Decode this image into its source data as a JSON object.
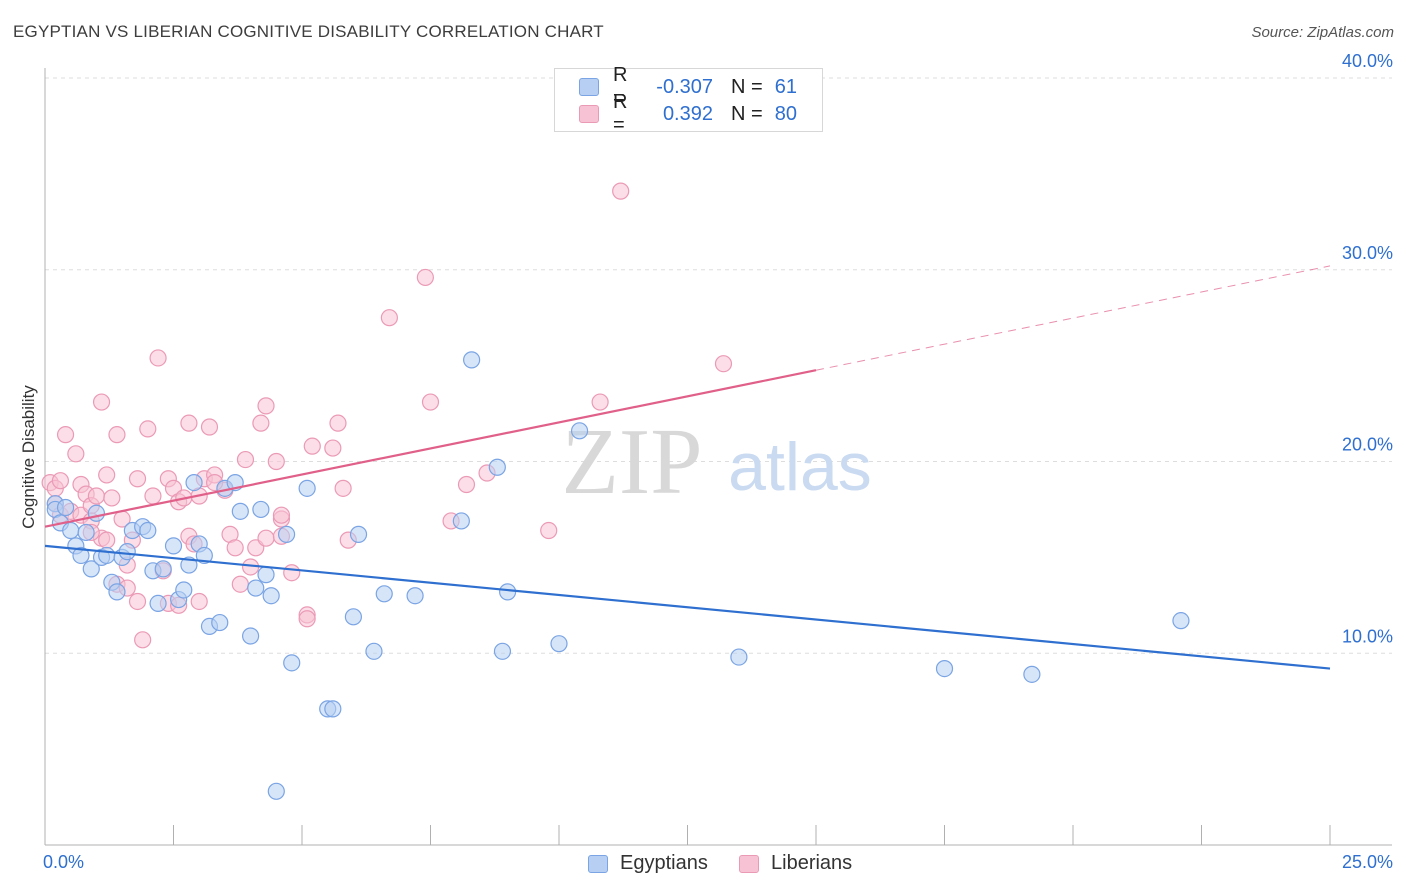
{
  "title": "EGYPTIAN VS LIBERIAN COGNITIVE DISABILITY CORRELATION CHART",
  "source": "Source: ZipAtlas.com",
  "watermark": {
    "zip": "ZIP",
    "atlas": "atlas"
  },
  "colors": {
    "blue": "#2e6fcf",
    "blue_fill": "#b7cff2",
    "blue_stroke": "#7aa4e4",
    "pink": "#e0608a",
    "pink_fill": "#f7c3d4",
    "pink_stroke": "#eb9ab6",
    "grid": "#dddddd",
    "axis": "#b0b0b0"
  },
  "legend": {
    "rows": [
      {
        "series": "Egyptians",
        "r_label": "R =",
        "r_value": "-0.307",
        "n_label": "N =",
        "n_value": "61"
      },
      {
        "series": "Liberians",
        "r_label": "R =",
        "r_value": "0.392",
        "n_label": "N =",
        "n_value": "80"
      }
    ]
  },
  "bottom_legend": {
    "items": [
      "Egyptians",
      "Liberians"
    ]
  },
  "x_axis": {
    "min_label": "0.0%",
    "max_label": "25.0%"
  },
  "chart_data": {
    "type": "scatter",
    "title": "EGYPTIAN VS LIBERIAN COGNITIVE DISABILITY CORRELATION CHART",
    "xlabel": "",
    "ylabel": "Cognitive Disability",
    "xlim": [
      0,
      25
    ],
    "ylim": [
      0,
      40
    ],
    "y_ticks": [
      10,
      20,
      30,
      40
    ],
    "y_tick_labels": [
      "10.0%",
      "20.0%",
      "30.0%",
      "40.0%"
    ],
    "grid": true,
    "legend_position": "top-center",
    "series": [
      {
        "name": "Egyptians",
        "color": "#2e6fcf",
        "r": -0.307,
        "n": 61,
        "trend": {
          "x": [
            0,
            25
          ],
          "y": [
            15.6,
            9.2
          ],
          "dashed_from": null
        },
        "points": [
          [
            0.2,
            17.8
          ],
          [
            0.2,
            17.5
          ],
          [
            0.3,
            16.8
          ],
          [
            0.4,
            17.6
          ],
          [
            0.5,
            16.4
          ],
          [
            0.6,
            15.6
          ],
          [
            0.7,
            15.1
          ],
          [
            0.8,
            16.3
          ],
          [
            0.9,
            14.4
          ],
          [
            1.0,
            17.3
          ],
          [
            1.1,
            15.0
          ],
          [
            1.2,
            15.1
          ],
          [
            1.3,
            13.7
          ],
          [
            1.4,
            13.2
          ],
          [
            1.5,
            15.0
          ],
          [
            1.6,
            15.3
          ],
          [
            1.7,
            16.4
          ],
          [
            1.9,
            16.6
          ],
          [
            2.0,
            16.4
          ],
          [
            2.1,
            14.3
          ],
          [
            2.2,
            12.6
          ],
          [
            2.3,
            14.4
          ],
          [
            2.5,
            15.6
          ],
          [
            2.6,
            12.8
          ],
          [
            2.7,
            13.3
          ],
          [
            2.8,
            14.6
          ],
          [
            2.9,
            18.9
          ],
          [
            3.0,
            15.7
          ],
          [
            3.1,
            15.1
          ],
          [
            3.2,
            11.4
          ],
          [
            3.4,
            11.6
          ],
          [
            3.5,
            18.6
          ],
          [
            3.7,
            18.9
          ],
          [
            3.8,
            17.4
          ],
          [
            4.0,
            10.9
          ],
          [
            4.1,
            13.4
          ],
          [
            4.2,
            17.5
          ],
          [
            4.3,
            14.1
          ],
          [
            4.4,
            13.0
          ],
          [
            4.5,
            2.8
          ],
          [
            4.7,
            16.2
          ],
          [
            4.8,
            9.5
          ],
          [
            5.1,
            18.6
          ],
          [
            5.5,
            7.1
          ],
          [
            5.6,
            7.1
          ],
          [
            6.0,
            11.9
          ],
          [
            6.1,
            16.2
          ],
          [
            6.4,
            10.1
          ],
          [
            6.6,
            13.1
          ],
          [
            7.2,
            13.0
          ],
          [
            8.1,
            16.9
          ],
          [
            8.3,
            25.3
          ],
          [
            8.8,
            19.7
          ],
          [
            8.9,
            10.1
          ],
          [
            9.0,
            13.2
          ],
          [
            10.0,
            10.5
          ],
          [
            10.4,
            21.6
          ],
          [
            13.5,
            9.8
          ],
          [
            17.5,
            9.2
          ],
          [
            19.2,
            8.9
          ],
          [
            22.1,
            11.7
          ]
        ]
      },
      {
        "name": "Liberians",
        "color": "#e0608a",
        "r": 0.392,
        "n": 80,
        "trend": {
          "x": [
            0,
            25
          ],
          "y": [
            16.6,
            30.2
          ],
          "dashed_from": 15.0
        },
        "points": [
          [
            0.1,
            18.9
          ],
          [
            0.2,
            18.6
          ],
          [
            0.2,
            17.8
          ],
          [
            0.3,
            19.0
          ],
          [
            0.3,
            17.2
          ],
          [
            0.4,
            21.4
          ],
          [
            0.5,
            17.4
          ],
          [
            0.6,
            20.4
          ],
          [
            0.7,
            17.2
          ],
          [
            0.7,
            18.8
          ],
          [
            0.8,
            18.3
          ],
          [
            0.9,
            17.7
          ],
          [
            0.9,
            16.9
          ],
          [
            1.0,
            18.2
          ],
          [
            1.1,
            23.1
          ],
          [
            1.1,
            16.0
          ],
          [
            1.2,
            19.3
          ],
          [
            1.2,
            15.9
          ],
          [
            1.3,
            18.1
          ],
          [
            1.4,
            21.4
          ],
          [
            1.4,
            13.6
          ],
          [
            1.5,
            17.0
          ],
          [
            1.6,
            14.6
          ],
          [
            1.7,
            15.9
          ],
          [
            1.8,
            19.1
          ],
          [
            1.8,
            12.7
          ],
          [
            1.9,
            10.7
          ],
          [
            2.0,
            21.7
          ],
          [
            2.1,
            18.2
          ],
          [
            2.2,
            25.4
          ],
          [
            2.3,
            14.3
          ],
          [
            2.4,
            19.1
          ],
          [
            2.4,
            12.6
          ],
          [
            2.5,
            18.6
          ],
          [
            2.6,
            17.9
          ],
          [
            2.7,
            18.1
          ],
          [
            2.8,
            22.0
          ],
          [
            2.8,
            16.1
          ],
          [
            3.0,
            18.2
          ],
          [
            3.0,
            12.7
          ],
          [
            3.1,
            19.1
          ],
          [
            3.2,
            21.8
          ],
          [
            3.3,
            19.3
          ],
          [
            3.5,
            18.5
          ],
          [
            3.6,
            16.2
          ],
          [
            3.7,
            15.5
          ],
          [
            3.8,
            13.6
          ],
          [
            3.9,
            20.1
          ],
          [
            4.0,
            14.5
          ],
          [
            4.1,
            15.5
          ],
          [
            4.2,
            22.0
          ],
          [
            4.3,
            22.9
          ],
          [
            4.3,
            16.0
          ],
          [
            4.5,
            20.0
          ],
          [
            4.6,
            17.0
          ],
          [
            4.6,
            16.1
          ],
          [
            4.8,
            14.2
          ],
          [
            5.1,
            12.0
          ],
          [
            5.1,
            11.8
          ],
          [
            5.2,
            20.8
          ],
          [
            5.6,
            20.7
          ],
          [
            5.7,
            22.0
          ],
          [
            5.8,
            18.6
          ],
          [
            5.9,
            15.9
          ],
          [
            6.7,
            27.5
          ],
          [
            7.4,
            29.6
          ],
          [
            7.5,
            23.1
          ],
          [
            7.9,
            16.9
          ],
          [
            8.2,
            18.8
          ],
          [
            8.6,
            19.4
          ],
          [
            9.8,
            16.4
          ],
          [
            10.8,
            23.1
          ],
          [
            11.2,
            34.1
          ],
          [
            13.2,
            25.1
          ],
          [
            2.6,
            12.5
          ],
          [
            1.6,
            13.4
          ],
          [
            3.3,
            18.9
          ],
          [
            0.9,
            16.3
          ],
          [
            2.9,
            15.7
          ],
          [
            4.6,
            17.2
          ]
        ]
      }
    ]
  }
}
